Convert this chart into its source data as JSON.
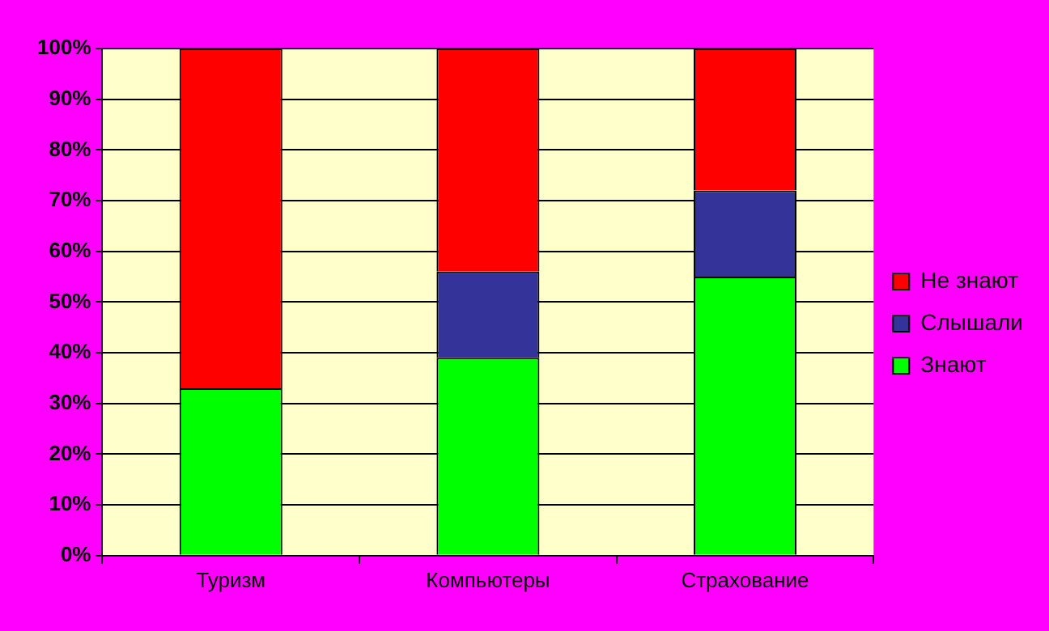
{
  "chart_data": {
    "type": "bar",
    "stacked": true,
    "categories": [
      "Туризм",
      "Компьютеры",
      "Страхование"
    ],
    "series": [
      {
        "name": "Знают",
        "color": "#00ff00",
        "values": [
          33,
          39,
          55
        ]
      },
      {
        "name": "Слышали",
        "color": "#333399",
        "values": [
          0,
          17,
          17
        ]
      },
      {
        "name": "Не знают",
        "color": "#ff0000",
        "values": [
          67,
          44,
          28
        ]
      }
    ],
    "ylim": [
      0,
      100
    ],
    "yticks": [
      {
        "value": 0,
        "label": "0%"
      },
      {
        "value": 10,
        "label": "10%"
      },
      {
        "value": 20,
        "label": "20%"
      },
      {
        "value": 30,
        "label": "30%"
      },
      {
        "value": 40,
        "label": "40%"
      },
      {
        "value": 50,
        "label": "50%"
      },
      {
        "value": 60,
        "label": "60%"
      },
      {
        "value": 70,
        "label": "70%"
      },
      {
        "value": 80,
        "label": "80%"
      },
      {
        "value": 90,
        "label": "90%"
      },
      {
        "value": 100,
        "label": "100%"
      }
    ],
    "grid": "y",
    "legend": "right"
  }
}
